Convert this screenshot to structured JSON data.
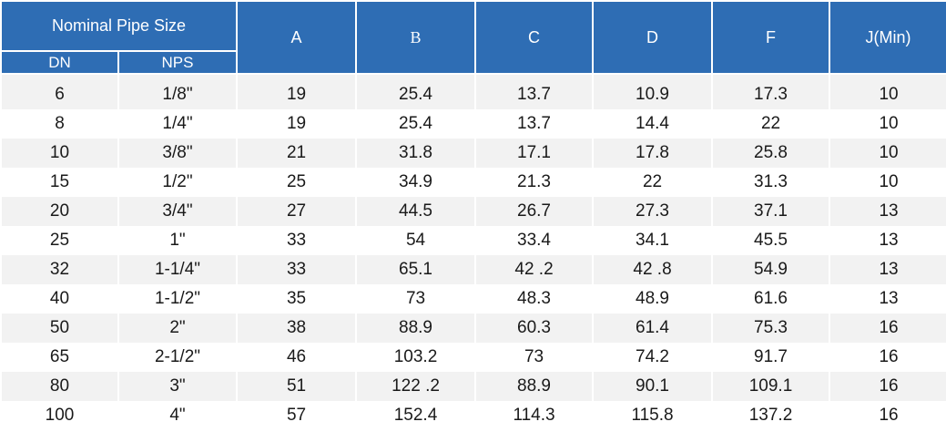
{
  "headers": {
    "nominal_pipe_size": "Nominal Pipe Size",
    "dn": "DN",
    "nps": "NPS",
    "a": "A",
    "b": "B",
    "c": "C",
    "d": "D",
    "f": "F",
    "j": "J(Min)"
  },
  "rows": [
    {
      "dn": "6",
      "nps": "1/8\"",
      "a": "19",
      "b": "25.4",
      "c": "13.7",
      "d": "10.9",
      "f": "17.3",
      "j": "10"
    },
    {
      "dn": "8",
      "nps": "1/4\"",
      "a": "19",
      "b": "25.4",
      "c": "13.7",
      "d": "14.4",
      "f": "22",
      "j": "10"
    },
    {
      "dn": "10",
      "nps": "3/8\"",
      "a": "21",
      "b": "31.8",
      "c": "17.1",
      "d": "17.8",
      "f": "25.8",
      "j": "10"
    },
    {
      "dn": "15",
      "nps": "1/2\"",
      "a": "25",
      "b": "34.9",
      "c": "21.3",
      "d": "22",
      "f": "31.3",
      "j": "10"
    },
    {
      "dn": "20",
      "nps": "3/4\"",
      "a": "27",
      "b": "44.5",
      "c": "26.7",
      "d": "27.3",
      "f": "37.1",
      "j": "13"
    },
    {
      "dn": "25",
      "nps": "1\"",
      "a": "33",
      "b": "54",
      "c": "33.4",
      "d": "34.1",
      "f": "45.5",
      "j": "13"
    },
    {
      "dn": "32",
      "nps": "1-1/4\"",
      "a": "33",
      "b": "65.1",
      "c": "42 .2",
      "d": "42 .8",
      "f": "54.9",
      "j": "13"
    },
    {
      "dn": "40",
      "nps": "1-1/2\"",
      "a": "35",
      "b": "73",
      "c": "48.3",
      "d": "48.9",
      "f": "61.6",
      "j": "13"
    },
    {
      "dn": "50",
      "nps": "2\"",
      "a": "38",
      "b": "88.9",
      "c": "60.3",
      "d": "61.4",
      "f": "75.3",
      "j": "16"
    },
    {
      "dn": "65",
      "nps": "2-1/2\"",
      "a": "46",
      "b": "103.2",
      "c": "73",
      "d": "74.2",
      "f": "91.7",
      "j": "16"
    },
    {
      "dn": "80",
      "nps": "3\"",
      "a": "51",
      "b": "122 .2",
      "c": "88.9",
      "d": "90.1",
      "f": "109.1",
      "j": "16"
    },
    {
      "dn": "100",
      "nps": "4\"",
      "a": "57",
      "b": "152.4",
      "c": "114.3",
      "d": "115.8",
      "f": "137.2",
      "j": "16"
    }
  ],
  "colors": {
    "header_bg": "#2e6db4",
    "header_text": "#ffffff",
    "stripe": "#f2f2f2"
  }
}
